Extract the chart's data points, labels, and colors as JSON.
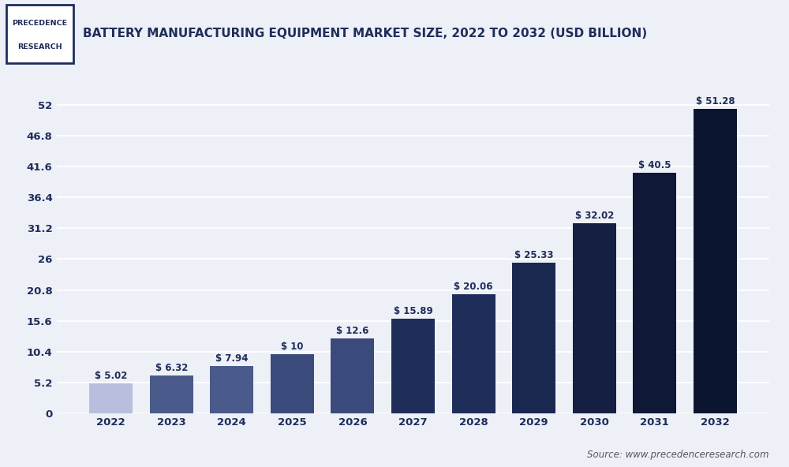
{
  "years": [
    "2022",
    "2023",
    "2024",
    "2025",
    "2026",
    "2027",
    "2028",
    "2029",
    "2030",
    "2031",
    "2032"
  ],
  "values": [
    5.02,
    6.32,
    7.94,
    10.0,
    12.6,
    15.89,
    20.06,
    25.33,
    32.02,
    40.5,
    51.28
  ],
  "labels": [
    "$ 5.02",
    "$ 6.32",
    "$ 7.94",
    "$ 10",
    "$ 12.6",
    "$ 15.89",
    "$ 20.06",
    "$ 25.33",
    "$ 32.02",
    "$ 40.5",
    "$ 51.28"
  ],
  "bar_colors": [
    "#b8bedd",
    "#4a5a8a",
    "#4a5a8a",
    "#3a4a7a",
    "#3a4a7a",
    "#1e2d5a",
    "#1e2d5a",
    "#1a2850",
    "#141f42",
    "#101838",
    "#0c1530"
  ],
  "yticks": [
    0,
    5.2,
    10.4,
    15.6,
    20.8,
    26,
    31.2,
    36.4,
    41.6,
    46.8,
    52
  ],
  "ytick_labels": [
    "0",
    "5.2",
    "10.4",
    "15.6",
    "20.8",
    "26",
    "31.2",
    "36.4",
    "41.6",
    "46.8",
    "52"
  ],
  "ylim": [
    0,
    57
  ],
  "title": "BATTERY MANUFACTURING EQUIPMENT MARKET SIZE, 2022 TO 2032 (USD BILLION)",
  "outer_bg_color": "#eef0f7",
  "header_bg_color": "#eef0f7",
  "plot_bg_color": "#eef0f7",
  "grid_color": "#ffffff",
  "source_text": "Source: www.precedenceresearch.com",
  "logo_text_line1": "PRECEDENCE",
  "logo_text_line2": "RESEARCH",
  "title_color": "#1e2d5a",
  "label_color": "#1e2d5a",
  "tick_color": "#1e2d5a",
  "bar_label_fontsize": 8.5,
  "tick_fontsize": 9.5
}
